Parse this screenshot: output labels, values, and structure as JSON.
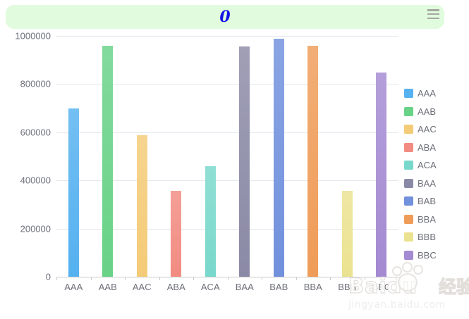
{
  "header": {
    "title": "0",
    "menu_icon": "hamburger-icon"
  },
  "chart_data": {
    "type": "bar",
    "title": "0",
    "xlabel": "",
    "ylabel": "",
    "categories": [
      "AAA",
      "AAB",
      "AAC",
      "ABA",
      "ACA",
      "BAA",
      "BAB",
      "BBA",
      "BBB",
      "BBC"
    ],
    "values": [
      700000,
      960000,
      587000,
      357000,
      459000,
      956000,
      989000,
      959000,
      358000,
      848000
    ],
    "bar_colors": [
      "#55b1f0",
      "#68d287",
      "#f4cb77",
      "#f28b81",
      "#78d8cb",
      "#8b8aa6",
      "#7191dd",
      "#ef9c58",
      "#ebe290",
      "#a48ad2"
    ],
    "ylim": [
      0,
      1000000
    ],
    "y_ticks": [
      0,
      200000,
      400000,
      600000,
      800000,
      1000000
    ],
    "grid": true,
    "legend": {
      "position": "right",
      "labels": [
        "AAA",
        "AAB",
        "AAC",
        "ABA",
        "ACA",
        "BAA",
        "BAB",
        "BBA",
        "BBB",
        "BBC"
      ]
    }
  },
  "colors": {
    "banner_bg": "#e0fbdd",
    "title_text": "#1414e6",
    "axis_label": "#6e7079",
    "gridline": "#e4e7ed",
    "axis_line": "#cccccc",
    "menu_icon": "#a5a8a0"
  },
  "watermark": {
    "brand": "Baidu",
    "suffix": "经验",
    "url": "jingyan.baidu.com",
    "paw_icon": "baidu-paw-icon"
  }
}
